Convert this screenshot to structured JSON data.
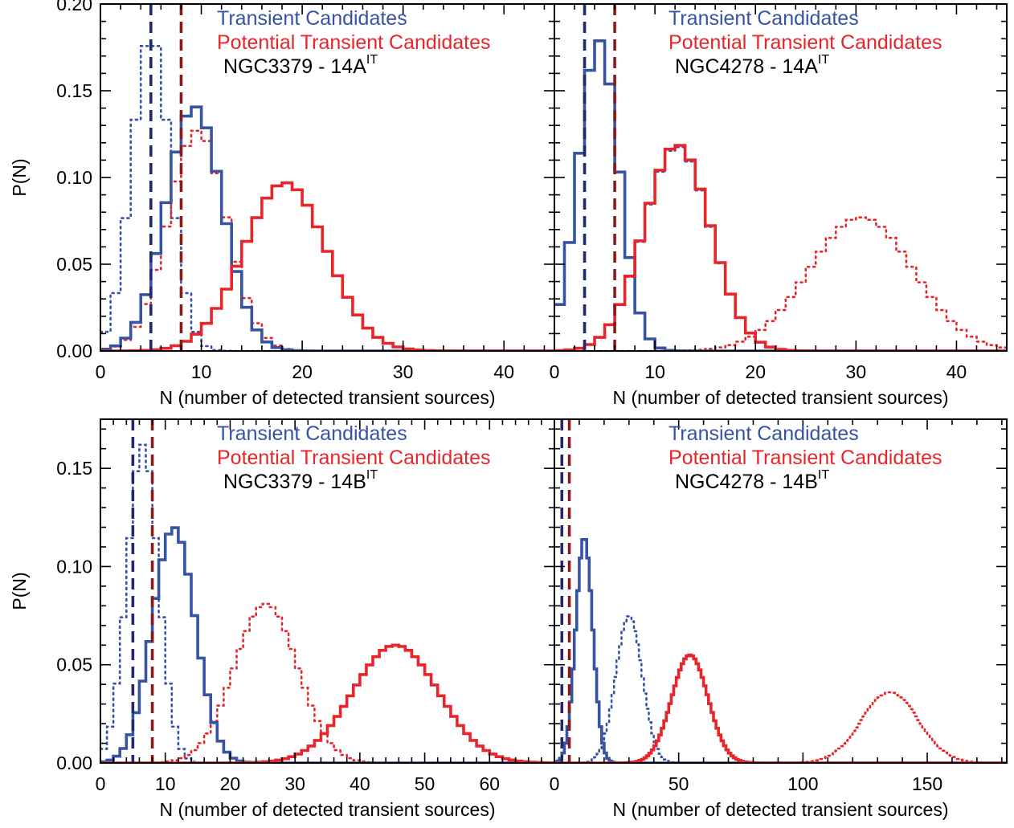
{
  "colors": {
    "transient": "#3653a4",
    "potential": "#e8252a",
    "transient_threshold": "#1f2a6e",
    "potential_threshold": "#8b1a1a",
    "axis": "#000000"
  },
  "chart_data": [
    {
      "type": "line",
      "step": true,
      "ylabel": "P(N)",
      "xlabel": "N (number of detected transient sources)",
      "xlim": [
        0,
        45
      ],
      "ylim": [
        0,
        0.2
      ],
      "xticks": [
        0,
        10,
        20,
        30,
        40
      ],
      "yticks": [
        0,
        0.05,
        0.1,
        0.15,
        0.2
      ],
      "ytick_labels": [
        "0.00",
        "0.05",
        "0.10",
        "0.15",
        "0.20"
      ],
      "legend": {
        "transient": "Transient Candidates",
        "potential": "Potential Transient Candidates",
        "field": "NGC3379 - 14A",
        "field_sup": "IT"
      },
      "thresholds": [
        {
          "series": "transient",
          "x": 5
        },
        {
          "series": "potential",
          "x": 8
        }
      ],
      "series": [
        {
          "series": "transient",
          "style": "solid",
          "model": "gauss",
          "peak": 0.141,
          "mu": 9.3,
          "sigma": 2.8
        },
        {
          "series": "potential",
          "style": "solid",
          "model": "gauss",
          "peak": 0.097,
          "mu": 18.3,
          "sigma": 4.1
        },
        {
          "series": "transient",
          "style": "dotted",
          "model": "gauss",
          "peak": 0.182,
          "mu": 5.0,
          "sigma": 1.9
        },
        {
          "series": "potential",
          "style": "dotted",
          "model": "gauss",
          "peak": 0.127,
          "mu": 9.6,
          "sigma": 2.9
        }
      ]
    },
    {
      "type": "line",
      "step": true,
      "ylabel": "",
      "xlabel": "N (number of detected transient sources)",
      "xlim": [
        0,
        45
      ],
      "ylim": [
        0,
        0.2
      ],
      "xticks": [
        0,
        10,
        20,
        30,
        40
      ],
      "yticks": [
        0,
        0.05,
        0.1,
        0.15,
        0.2
      ],
      "ytick_labels": [],
      "legend": {
        "transient": "Transient Candidates",
        "potential": "Potential Transient Candidates",
        "field": "NGC4278 - 14A",
        "field_sup": "IT"
      },
      "thresholds": [
        {
          "series": "transient",
          "x": 3
        },
        {
          "series": "potential",
          "x": 6
        }
      ],
      "series": [
        {
          "series": "transient",
          "style": "solid",
          "model": "gauss",
          "peak": 0.179,
          "mu": 4.4,
          "sigma": 2.0
        },
        {
          "series": "potential",
          "style": "solid",
          "model": "gauss",
          "peak": 0.119,
          "mu": 12.2,
          "sigma": 3.3
        },
        {
          "series": "transient",
          "style": "dotted",
          "model": "gauss",
          "peak": 0.118,
          "mu": 12.2,
          "sigma": 3.3
        },
        {
          "series": "potential",
          "style": "dotted",
          "model": "gauss",
          "peak": 0.077,
          "mu": 30.5,
          "sigma": 5.2
        }
      ]
    },
    {
      "type": "line",
      "step": true,
      "ylabel": "P(N)",
      "xlabel": "N (number of detected transient sources)",
      "xlim": [
        0,
        70
      ],
      "ylim": [
        0,
        0.175
      ],
      "xticks": [
        0,
        10,
        20,
        30,
        40,
        50,
        60
      ],
      "yticks": [
        0,
        0.05,
        0.1,
        0.15
      ],
      "ytick_labels": [
        "0.00",
        "0.05",
        "0.10",
        "0.15"
      ],
      "legend": {
        "transient": "Transient Candidates",
        "potential": "Potential Transient Candidates",
        "field": "NGC3379 - 14B",
        "field_sup": "IT"
      },
      "thresholds": [
        {
          "series": "transient",
          "x": 5
        },
        {
          "series": "potential",
          "x": 8
        }
      ],
      "series": [
        {
          "series": "transient",
          "style": "solid",
          "model": "gauss",
          "peak": 0.12,
          "mu": 11.3,
          "sigma": 3.3
        },
        {
          "series": "potential",
          "style": "solid",
          "model": "gauss",
          "peak": 0.06,
          "mu": 45.5,
          "sigma": 6.6
        },
        {
          "series": "transient",
          "style": "dotted",
          "model": "gauss",
          "peak": 0.162,
          "mu": 6.5,
          "sigma": 2.4
        },
        {
          "series": "potential",
          "style": "dotted",
          "model": "gauss",
          "peak": 0.081,
          "mu": 25.5,
          "sigma": 4.9
        }
      ]
    },
    {
      "type": "line",
      "step": true,
      "ylabel": "",
      "xlabel": "N (number of detected transient sources)",
      "xlim": [
        0,
        182
      ],
      "ylim": [
        0,
        0.175
      ],
      "xticks": [
        0,
        50,
        100,
        150
      ],
      "yticks": [
        0,
        0.05,
        0.1,
        0.15
      ],
      "ytick_labels": [],
      "legend": {
        "transient": "Transient Candidates",
        "potential": "Potential Transient Candidates",
        "field": "NGC4278 - 14B",
        "field_sup": "IT"
      },
      "thresholds": [
        {
          "series": "transient",
          "x": 3
        },
        {
          "series": "potential",
          "x": 6
        }
      ],
      "series": [
        {
          "series": "transient",
          "style": "solid",
          "model": "gauss",
          "peak": 0.115,
          "mu": 12.0,
          "sigma": 3.4
        },
        {
          "series": "potential",
          "style": "solid",
          "model": "gauss",
          "peak": 0.055,
          "mu": 54.5,
          "sigma": 7.3
        },
        {
          "series": "transient",
          "style": "dotted",
          "model": "gauss",
          "peak": 0.075,
          "mu": 30.0,
          "sigma": 5.3
        },
        {
          "series": "potential",
          "style": "dotted",
          "model": "gauss",
          "peak": 0.036,
          "mu": 135.0,
          "sigma": 11.5
        }
      ]
    }
  ]
}
